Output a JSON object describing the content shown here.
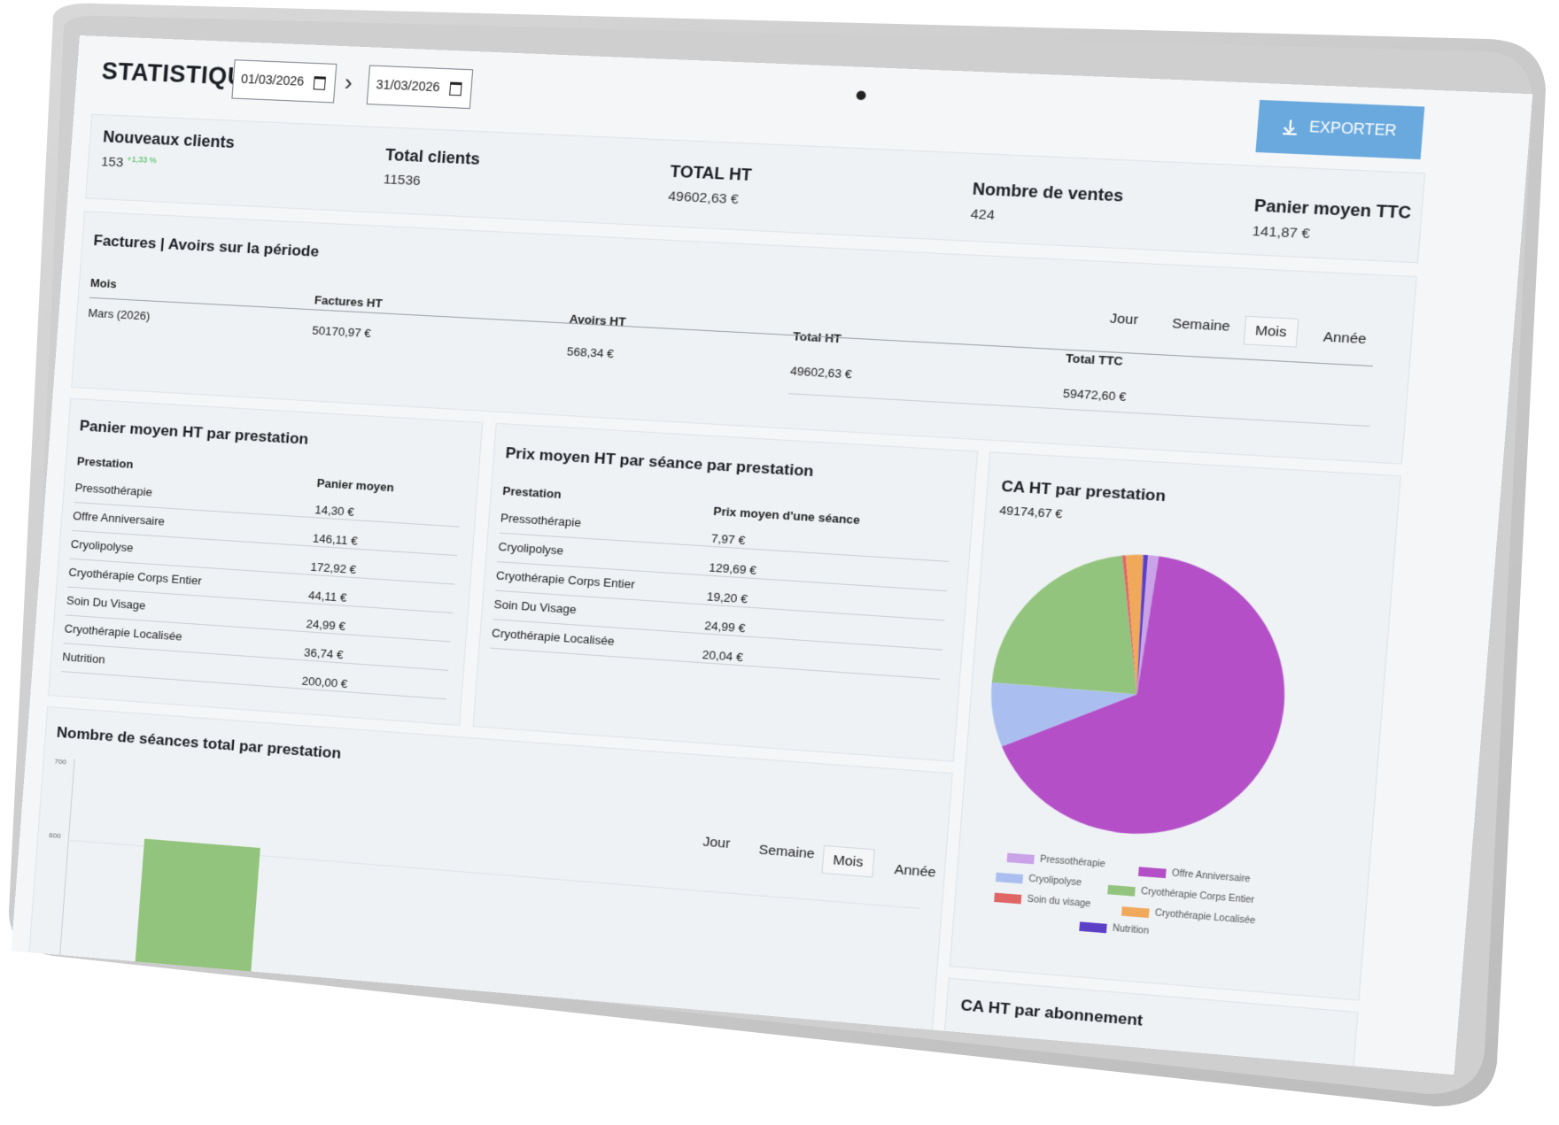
{
  "header": {
    "title": "STATISTIQUES",
    "date_start": "01/03/2026",
    "date_end": "31/03/2026",
    "export_label": "EXPORTER"
  },
  "kpis": {
    "new_clients": {
      "label": "Nouveaux clients",
      "value": "153",
      "delta": "+1,33 %"
    },
    "total_clients": {
      "label": "Total clients",
      "value": "11536"
    },
    "total_ht": {
      "label": "TOTAL HT",
      "value": "49602,63 €"
    },
    "sales_count": {
      "label": "Nombre de ventes",
      "value": "424"
    },
    "avg_basket": {
      "label": "Panier moyen TTC",
      "value": "141,87 €"
    }
  },
  "invoices": {
    "title": "Factures | Avoirs sur la période",
    "columns": [
      "Mois",
      "Factures HT",
      "Avoirs HT",
      "Total HT",
      "Total TTC"
    ],
    "row": [
      "Mars (2026)",
      "50170,97 €",
      "568,34 €",
      "49602,63 €",
      "59472,60 €"
    ],
    "periods": [
      "Jour",
      "Semaine",
      "Mois",
      "Année"
    ],
    "active_period": "Mois"
  },
  "avg_basket_table": {
    "title": "Panier moyen HT par prestation",
    "columns": [
      "Prestation",
      "Panier moyen"
    ],
    "rows": [
      [
        "Pressothérapie",
        "14,30 €"
      ],
      [
        "Offre Anniversaire",
        "146,11 €"
      ],
      [
        "Cryolipolyse",
        "172,92 €"
      ],
      [
        "Cryothérapie Corps Entier",
        "44,11 €"
      ],
      [
        "Soin Du Visage",
        "24,99 €"
      ],
      [
        "Cryothérapie Localisée",
        "36,74 €"
      ],
      [
        "Nutrition",
        "200,00 €"
      ]
    ]
  },
  "avg_price_table": {
    "title": "Prix moyen HT par séance par prestation",
    "columns": [
      "Prestation",
      "Prix moyen d'une séance"
    ],
    "rows": [
      [
        "Pressothérapie",
        "7,97 €"
      ],
      [
        "Cryolipolyse",
        "129,69 €"
      ],
      [
        "Cryothérapie Corps Entier",
        "19,20 €"
      ],
      [
        "Soin Du Visage",
        "24,99 €"
      ],
      [
        "Cryothérapie Localisée",
        "20,04 €"
      ]
    ]
  },
  "ca_pie": {
    "title": "CA HT par prestation",
    "total": "49174,67 €",
    "slices": [
      {
        "name": "Pressothérapie",
        "value": 1.2,
        "color": "#c9a2e8"
      },
      {
        "name": "Offre Anniversaire",
        "value": 66.5,
        "color": "#b44fc7"
      },
      {
        "name": "Cryolipolyse",
        "value": 7.5,
        "color": "#aabff0"
      },
      {
        "name": "Cryothérapie Corps Entier",
        "value": 22.0,
        "color": "#93c47d"
      },
      {
        "name": "Soin du visage",
        "value": 0.4,
        "color": "#e06666"
      },
      {
        "name": "Cryothérapie Localisée",
        "value": 1.9,
        "color": "#f0a95b"
      },
      {
        "name": "Nutrition",
        "value": 0.5,
        "color": "#5b3fc7"
      }
    ]
  },
  "sessions_chart": {
    "title": "Nombre de séances total par prestation",
    "y_ticks": [
      "700",
      "600"
    ],
    "periods": [
      "Jour",
      "Semaine",
      "Mois",
      "Année"
    ],
    "active_period": "Mois",
    "bar_color": "#93c47d"
  },
  "ca_subscription": {
    "title": "CA HT par abonnement"
  }
}
